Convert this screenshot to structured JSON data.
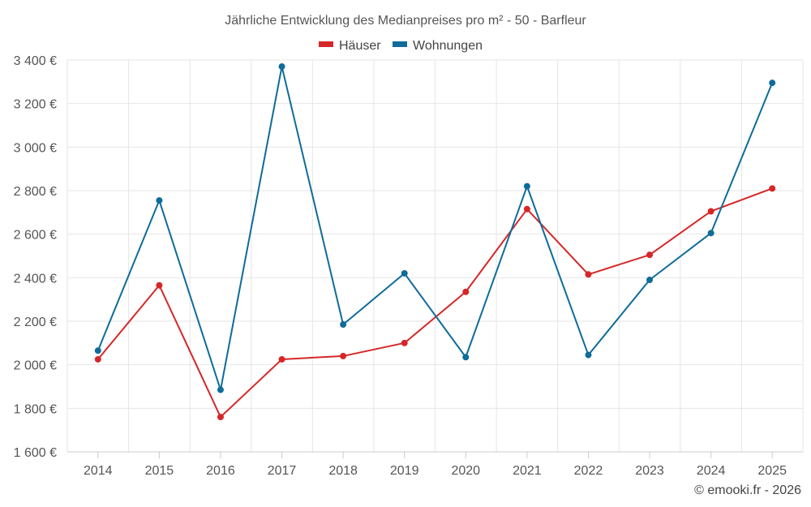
{
  "chart_data": {
    "type": "line",
    "title": "Jährliche Entwicklung des Medianpreises pro m² - 50 - Barfleur",
    "xlabel": "",
    "ylabel": "",
    "categories": [
      "2014",
      "2015",
      "2016",
      "2017",
      "2018",
      "2019",
      "2020",
      "2021",
      "2022",
      "2023",
      "2024",
      "2025"
    ],
    "ylim": [
      1600,
      3400
    ],
    "yticks": [
      1600,
      1800,
      2000,
      2200,
      2400,
      2600,
      2800,
      3000,
      3200,
      3400
    ],
    "ytick_labels": [
      "1 600 €",
      "1 800 €",
      "2 000 €",
      "2 200 €",
      "2 400 €",
      "2 600 €",
      "2 800 €",
      "3 000 €",
      "3 200 €",
      "3 400 €"
    ],
    "grid": true,
    "legend_position": "top-center",
    "series": [
      {
        "name": "Häuser",
        "color": "#d62728",
        "values": [
          2025,
          2365,
          1760,
          2025,
          2040,
          2100,
          2335,
          2715,
          2415,
          2505,
          2705,
          2810
        ]
      },
      {
        "name": "Wohnungen",
        "color": "#0f6b9a",
        "values": [
          2065,
          2755,
          1885,
          3370,
          2185,
          2420,
          2035,
          2820,
          2045,
          2390,
          2605,
          3295
        ]
      }
    ]
  },
  "credit": "© emooki.fr - 2026"
}
